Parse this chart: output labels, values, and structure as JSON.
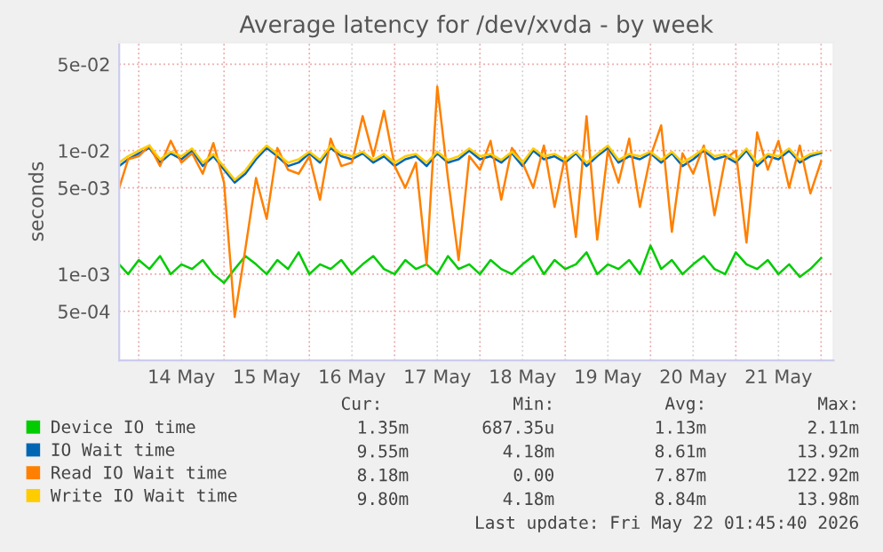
{
  "chart_data": {
    "type": "line",
    "title": "Average latency for /dev/xvda - by week",
    "ylabel": "seconds",
    "log": "y",
    "x": [
      "2026-05-13T18:30",
      "2026-05-13T21:00",
      "2026-05-14T00:00",
      "2026-05-14T03:00",
      "2026-05-14T06:00",
      "2026-05-14T09:00",
      "2026-05-14T12:00",
      "2026-05-14T15:00",
      "2026-05-14T18:00",
      "2026-05-14T21:00",
      "2026-05-15T00:00",
      "2026-05-15T03:00",
      "2026-05-15T06:00",
      "2026-05-15T09:00",
      "2026-05-15T12:00",
      "2026-05-15T15:00",
      "2026-05-15T18:00",
      "2026-05-15T21:00",
      "2026-05-16T00:00",
      "2026-05-16T03:00",
      "2026-05-16T06:00",
      "2026-05-16T09:00",
      "2026-05-16T12:00",
      "2026-05-16T15:00",
      "2026-05-16T18:00",
      "2026-05-16T21:00",
      "2026-05-17T00:00",
      "2026-05-17T03:00",
      "2026-05-17T06:00",
      "2026-05-17T09:00",
      "2026-05-17T12:00",
      "2026-05-17T15:00",
      "2026-05-17T18:00",
      "2026-05-17T21:00",
      "2026-05-18T00:00",
      "2026-05-18T03:00",
      "2026-05-18T06:00",
      "2026-05-18T09:00",
      "2026-05-18T12:00",
      "2026-05-18T15:00",
      "2026-05-18T18:00",
      "2026-05-18T21:00",
      "2026-05-19T00:00",
      "2026-05-19T03:00",
      "2026-05-19T06:00",
      "2026-05-19T09:00",
      "2026-05-19T12:00",
      "2026-05-19T15:00",
      "2026-05-19T18:00",
      "2026-05-19T21:00",
      "2026-05-20T00:00",
      "2026-05-20T03:00",
      "2026-05-20T06:00",
      "2026-05-20T09:00",
      "2026-05-20T12:00",
      "2026-05-20T15:00",
      "2026-05-20T18:00",
      "2026-05-20T21:00",
      "2026-05-21T00:00",
      "2026-05-21T03:00",
      "2026-05-21T06:00",
      "2026-05-21T09:00",
      "2026-05-21T12:00",
      "2026-05-21T15:00",
      "2026-05-21T18:00",
      "2026-05-21T21:00",
      "2026-05-22T00:00"
    ],
    "series": [
      {
        "name": "Device IO time",
        "color": "#00cc00",
        "values": [
          0.0012,
          0.001,
          0.0013,
          0.0011,
          0.0014,
          0.001,
          0.0012,
          0.0011,
          0.0013,
          0.001,
          0.00085,
          0.0011,
          0.0014,
          0.0012,
          0.001,
          0.0013,
          0.0011,
          0.0015,
          0.001,
          0.0012,
          0.0011,
          0.0013,
          0.001,
          0.0012,
          0.0014,
          0.0011,
          0.001,
          0.0013,
          0.0011,
          0.0012,
          0.001,
          0.0014,
          0.0011,
          0.0012,
          0.001,
          0.0013,
          0.0011,
          0.001,
          0.0012,
          0.0014,
          0.001,
          0.0013,
          0.0011,
          0.0012,
          0.0015,
          0.001,
          0.0012,
          0.0011,
          0.0013,
          0.001,
          0.0017,
          0.0011,
          0.0013,
          0.001,
          0.0012,
          0.0014,
          0.0011,
          0.001,
          0.0015,
          0.0012,
          0.0011,
          0.0013,
          0.001,
          0.0012,
          0.00095,
          0.0011,
          0.00135
        ]
      },
      {
        "name": "IO Wait time",
        "color": "#0066b3",
        "values": [
          0.0075,
          0.0085,
          0.0095,
          0.0105,
          0.008,
          0.0095,
          0.0085,
          0.01,
          0.0075,
          0.009,
          0.007,
          0.0055,
          0.0065,
          0.0085,
          0.0105,
          0.009,
          0.0075,
          0.008,
          0.0095,
          0.008,
          0.0105,
          0.009,
          0.0085,
          0.0095,
          0.008,
          0.009,
          0.0075,
          0.0085,
          0.009,
          0.0075,
          0.0095,
          0.008,
          0.0085,
          0.01,
          0.0085,
          0.009,
          0.008,
          0.0095,
          0.0075,
          0.01,
          0.0085,
          0.009,
          0.008,
          0.0095,
          0.0075,
          0.009,
          0.0105,
          0.008,
          0.009,
          0.0085,
          0.0095,
          0.008,
          0.0095,
          0.0075,
          0.0085,
          0.01,
          0.0085,
          0.009,
          0.008,
          0.01,
          0.0075,
          0.009,
          0.0085,
          0.01,
          0.008,
          0.009,
          0.00955
        ]
      },
      {
        "name": "Read IO Wait time",
        "color": "#ff8000",
        "values": [
          0.005,
          0.0085,
          0.009,
          0.011,
          0.0075,
          0.012,
          0.008,
          0.0095,
          0.0065,
          0.0115,
          0.0055,
          0.00045,
          0.0016,
          0.006,
          0.0028,
          0.0105,
          0.007,
          0.0065,
          0.009,
          0.004,
          0.0125,
          0.0075,
          0.008,
          0.019,
          0.009,
          0.021,
          0.0075,
          0.005,
          0.008,
          0.0012,
          0.033,
          0.006,
          0.0013,
          0.009,
          0.007,
          0.012,
          0.004,
          0.0105,
          0.008,
          0.005,
          0.011,
          0.0035,
          0.009,
          0.002,
          0.019,
          0.0019,
          0.01,
          0.0055,
          0.0125,
          0.0035,
          0.009,
          0.016,
          0.0022,
          0.0095,
          0.0065,
          0.011,
          0.003,
          0.0085,
          0.01,
          0.0018,
          0.014,
          0.007,
          0.012,
          0.005,
          0.011,
          0.0045,
          0.0082
        ]
      },
      {
        "name": "Write IO Wait time",
        "color": "#ffcc00",
        "values": [
          0.008,
          0.009,
          0.01,
          0.011,
          0.0085,
          0.0098,
          0.009,
          0.0104,
          0.008,
          0.0094,
          0.0074,
          0.0058,
          0.0069,
          0.009,
          0.011,
          0.0094,
          0.008,
          0.0085,
          0.0098,
          0.0084,
          0.011,
          0.0094,
          0.009,
          0.0098,
          0.0084,
          0.0094,
          0.008,
          0.009,
          0.0094,
          0.008,
          0.0098,
          0.0084,
          0.009,
          0.0104,
          0.009,
          0.0094,
          0.0084,
          0.0098,
          0.008,
          0.0104,
          0.009,
          0.0094,
          0.0084,
          0.0098,
          0.008,
          0.0094,
          0.011,
          0.0084,
          0.0094,
          0.009,
          0.0098,
          0.0084,
          0.0098,
          0.008,
          0.009,
          0.0104,
          0.009,
          0.0094,
          0.0084,
          0.0104,
          0.008,
          0.0094,
          0.009,
          0.0104,
          0.0084,
          0.0094,
          0.0098
        ]
      }
    ],
    "xlim": [
      "2026-05-13T18:30",
      "2026-05-22T03:30"
    ],
    "xticks": [
      {
        "value": "2026-05-14T00:00",
        "label": null
      },
      {
        "value": "2026-05-14T12:00",
        "label": "14 May"
      },
      {
        "value": "2026-05-15T00:00",
        "label": null
      },
      {
        "value": "2026-05-15T12:00",
        "label": "15 May"
      },
      {
        "value": "2026-05-16T00:00",
        "label": null
      },
      {
        "value": "2026-05-16T12:00",
        "label": "16 May"
      },
      {
        "value": "2026-05-17T00:00",
        "label": null
      },
      {
        "value": "2026-05-17T12:00",
        "label": "17 May"
      },
      {
        "value": "2026-05-18T00:00",
        "label": null
      },
      {
        "value": "2026-05-18T12:00",
        "label": "18 May"
      },
      {
        "value": "2026-05-19T00:00",
        "label": null
      },
      {
        "value": "2026-05-19T12:00",
        "label": "19 May"
      },
      {
        "value": "2026-05-20T00:00",
        "label": null
      },
      {
        "value": "2026-05-20T12:00",
        "label": "20 May"
      },
      {
        "value": "2026-05-21T00:00",
        "label": null
      },
      {
        "value": "2026-05-21T12:00",
        "label": "21 May"
      },
      {
        "value": "2026-05-22T00:00",
        "label": null
      }
    ],
    "ylim": [
      0.0002,
      0.075
    ],
    "yticks": [
      {
        "value": 0.0005,
        "label": "5e-04"
      },
      {
        "value": 0.001,
        "label": "1e-03"
      },
      {
        "value": 0.005,
        "label": "5e-03"
      },
      {
        "value": 0.01,
        "label": "1e-02"
      },
      {
        "value": 0.05,
        "label": "5e-02"
      }
    ],
    "grid": true,
    "legend": "bottom",
    "line_style": "solid",
    "marker": "none",
    "annotations": [
      "Cur:",
      "Min:",
      "Avg:",
      "Max:",
      "1.35m",
      "687.35u",
      "1.13m",
      "2.11m",
      "9.55m",
      "4.18m",
      "8.61m",
      "13.92m",
      "8.18m",
      "0.00",
      "7.87m",
      "122.92m",
      "9.80m",
      "4.18m",
      "8.84m",
      "13.98m",
      "Last update: Fri May 22 01:45:40 2026"
    ]
  }
}
